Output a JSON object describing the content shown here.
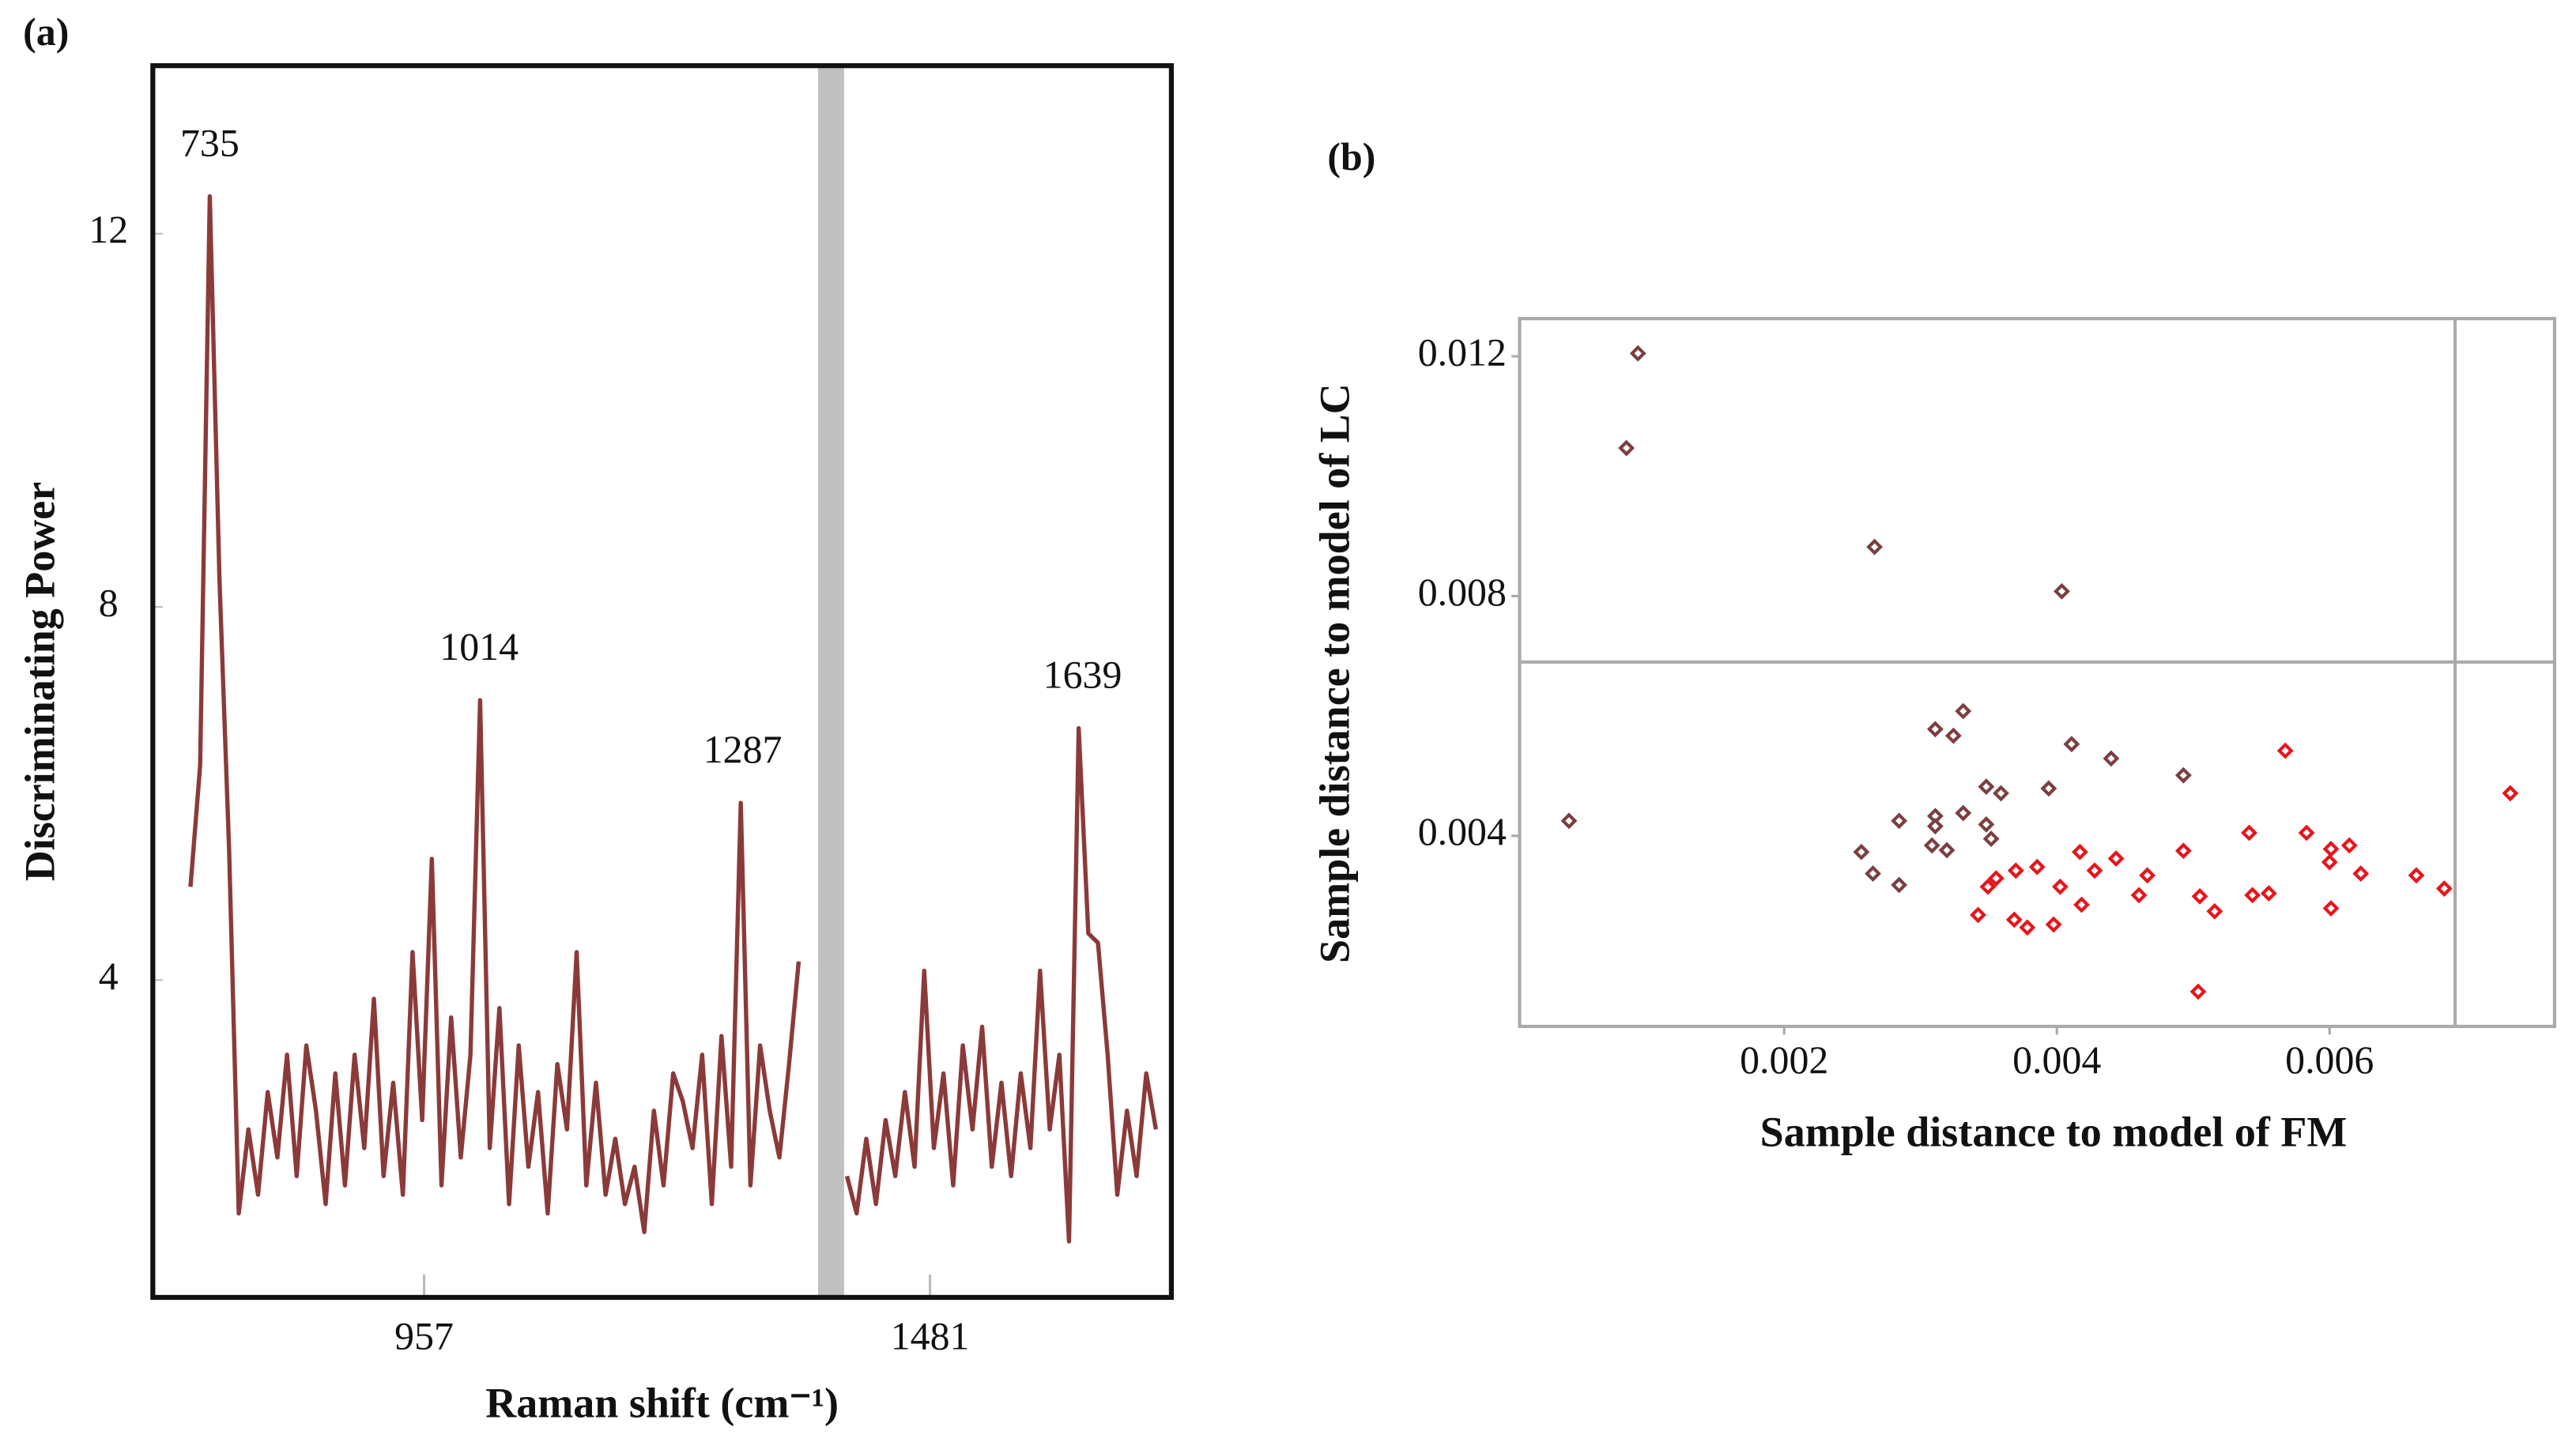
{
  "chart_data": [
    {
      "type": "line",
      "panel_label": "(a)",
      "xlabel": "Raman shift (cm⁻¹)",
      "ylabel": "Discriminating Power",
      "color": "#8b3a3a",
      "x": [
        715,
        725,
        735,
        745,
        755,
        765,
        775,
        785,
        795,
        805,
        815,
        825,
        835,
        845,
        855,
        865,
        875,
        885,
        895,
        905,
        915,
        925,
        935,
        945,
        955,
        965,
        975,
        985,
        995,
        1005,
        1015,
        1025,
        1035,
        1045,
        1055,
        1065,
        1075,
        1085,
        1095,
        1105,
        1115,
        1125,
        1135,
        1145,
        1155,
        1165,
        1175,
        1185,
        1195,
        1205,
        1215,
        1225,
        1235,
        1245,
        1255,
        1265,
        1275,
        1285,
        1295,
        1305,
        1315,
        1325,
        1335,
        1345,
        1370,
        1395,
        1405,
        1415,
        1425,
        1435,
        1445,
        1455,
        1465,
        1475,
        1485,
        1495,
        1505,
        1515,
        1525,
        1535,
        1545,
        1555,
        1565,
        1575,
        1585,
        1595,
        1605,
        1615,
        1625,
        1635,
        1645,
        1655,
        1665,
        1675,
        1685,
        1695,
        1705,
        1715
      ],
      "values": [
        5.0,
        6.3,
        12.4,
        8.3,
        5.4,
        1.5,
        2.4,
        1.7,
        2.8,
        2.1,
        3.2,
        1.9,
        3.3,
        2.6,
        1.6,
        3.0,
        1.8,
        3.2,
        2.2,
        3.8,
        1.9,
        2.9,
        1.7,
        4.3,
        2.5,
        5.3,
        1.8,
        3.6,
        2.1,
        3.2,
        7.0,
        2.2,
        3.7,
        1.6,
        3.3,
        2.0,
        2.8,
        1.5,
        3.1,
        2.4,
        4.3,
        1.8,
        2.9,
        1.7,
        2.3,
        1.6,
        2.0,
        1.3,
        2.6,
        1.8,
        3.0,
        2.7,
        2.2,
        3.2,
        1.6,
        3.4,
        2.0,
        5.9,
        1.8,
        3.3,
        2.6,
        2.1,
        3.1,
        4.2,
        null,
        1.9,
        1.5,
        2.3,
        1.6,
        2.5,
        1.9,
        2.8,
        2.0,
        4.1,
        2.2,
        3.0,
        1.8,
        3.3,
        2.4,
        3.5,
        2.0,
        2.9,
        1.9,
        3.0,
        2.2,
        4.1,
        2.4,
        3.2,
        1.2,
        6.7,
        4.5,
        4.4,
        3.2,
        1.7,
        2.6,
        1.9,
        3.0,
        2.4
      ],
      "annotations": [
        735,
        1014,
        1287,
        1639
      ],
      "shaded_region": [
        1365,
        1392
      ],
      "shaded_color": "#c0c0c0",
      "xlim": [
        676,
        1731
      ],
      "xticks": [
        957,
        1481
      ],
      "ylim": [
        0.6,
        13.8
      ],
      "yticks": [
        4,
        8,
        12
      ]
    },
    {
      "type": "scatter",
      "panel_label": "(b)",
      "xlabel": "Sample distance to model of FM",
      "ylabel": "Sample distance to model of LC",
      "series": [
        {
          "color": "#7b3f3f",
          "x": [
            0.000928,
            0.000843,
            0.002663,
            0.004036,
            0.000422,
            0.003108,
            0.003313,
            0.003241,
            0.004108,
            0.004398,
            0.003482,
            0.00359,
            0.00394,
            0.003313,
            0.003108,
            0.002843,
            0.003108,
            0.003482,
            0.003518,
            0.003084,
            0.003193,
            0.002566,
            0.002651,
            0.002843,
            0.004928
          ],
          "y": [
            0.01205,
            0.01047,
            0.00882,
            0.00808,
            0.00425,
            0.00578,
            0.00608,
            0.00567,
            0.00553,
            0.00529,
            0.00482,
            0.00471,
            0.00479,
            0.00438,
            0.00433,
            0.00425,
            0.00416,
            0.00419,
            0.00395,
            0.00384,
            0.00376,
            0.00373,
            0.00337,
            0.00318,
            0.00501
          ]
        },
        {
          "color": "#e8141b",
          "x": [
            0.005675,
            0.007325,
            0.00541,
            0.005831,
            0.00601,
            0.006145,
            0.006,
            0.006229,
            0.006636,
            0.006841,
            0.004928,
            0.004434,
            0.004169,
            0.004277,
            0.003855,
            0.003699,
            0.003554,
            0.003494,
            0.003422,
            0.003687,
            0.003783,
            0.003976,
            0.004024,
            0.004181,
            0.004602,
            0.004663,
            0.005048,
            0.005157,
            0.005434,
            0.005554,
            0.00601,
            0.005036
          ],
          "y": [
            0.00542,
            0.00471,
            0.00405,
            0.00405,
            0.00378,
            0.00384,
            0.00356,
            0.00337,
            0.00334,
            0.00312,
            0.00375,
            0.00362,
            0.00373,
            0.00342,
            0.00348,
            0.00342,
            0.00329,
            0.00315,
            0.00268,
            0.0026,
            0.00247,
            0.00252,
            0.00315,
            0.00285,
            0.00301,
            0.00334,
            0.00299,
            0.00274,
            0.00301,
            0.00304,
            0.00279,
            0.0014
          ]
        }
      ],
      "threshold_x": 0.00692,
      "threshold_y": 0.0069,
      "xlim": [
        6e-05,
        0.00765
      ],
      "xticks": [
        0.002,
        0.004,
        0.006
      ],
      "ylim": [
        0.00082,
        0.01263
      ],
      "yticks": [
        0.004,
        0.008,
        0.012
      ]
    }
  ]
}
